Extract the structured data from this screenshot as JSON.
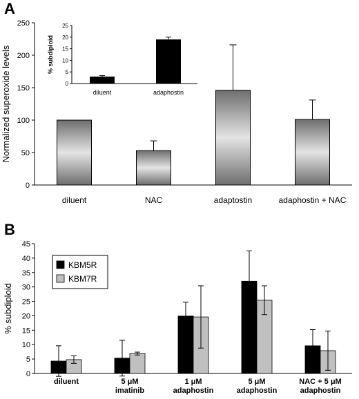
{
  "panels": {
    "a_label": "A",
    "b_label": "B"
  },
  "chart_data": [
    {
      "id": "A-main",
      "type": "bar",
      "ylabel": "Normalized superoxide levels",
      "ylim": [
        0,
        250
      ],
      "yticks": [
        0,
        50,
        100,
        150,
        200,
        250
      ],
      "categories": [
        "diluent",
        "NAC",
        "adaptostin",
        "adaphostin + NAC"
      ],
      "values": [
        100,
        53,
        146,
        101
      ],
      "errors": [
        0,
        15,
        70,
        30
      ],
      "bar_style": "gray-gradient"
    },
    {
      "id": "A-inset",
      "type": "bar",
      "ylabel": "% subdiploid",
      "ylim": [
        0,
        25
      ],
      "yticks": [
        0,
        5,
        10,
        15,
        20,
        25
      ],
      "categories": [
        "diluent",
        "adaphostin"
      ],
      "values": [
        3,
        19
      ],
      "errors": [
        0.4,
        1
      ],
      "color": "#000000"
    },
    {
      "id": "B",
      "type": "bar",
      "ylabel": "% subdiploid",
      "ylim": [
        0,
        45
      ],
      "yticks": [
        0,
        5,
        10,
        15,
        20,
        25,
        30,
        35,
        40,
        45
      ],
      "categories": [
        [
          "diluent"
        ],
        [
          "5 μM",
          "imatinib"
        ],
        [
          "1 μM",
          "adaphostin"
        ],
        [
          "5 μM",
          "adaphostin"
        ],
        [
          "NAC + 5 μM",
          "adaphostin"
        ]
      ],
      "legend_position": "top-left",
      "series": [
        {
          "name": "KBM5R",
          "color": "#000000",
          "values": [
            4.3,
            5.3,
            19.9,
            32,
            9.6
          ],
          "errors": [
            5.3,
            6.2,
            4.8,
            10.5,
            5.6
          ]
        },
        {
          "name": "KBM7R",
          "color": "#c0c0c0",
          "values": [
            4.8,
            6.9,
            19.6,
            25.4,
            7.9
          ],
          "errors": [
            1.3,
            0.5,
            10.8,
            5.0,
            6.8
          ]
        }
      ]
    }
  ]
}
